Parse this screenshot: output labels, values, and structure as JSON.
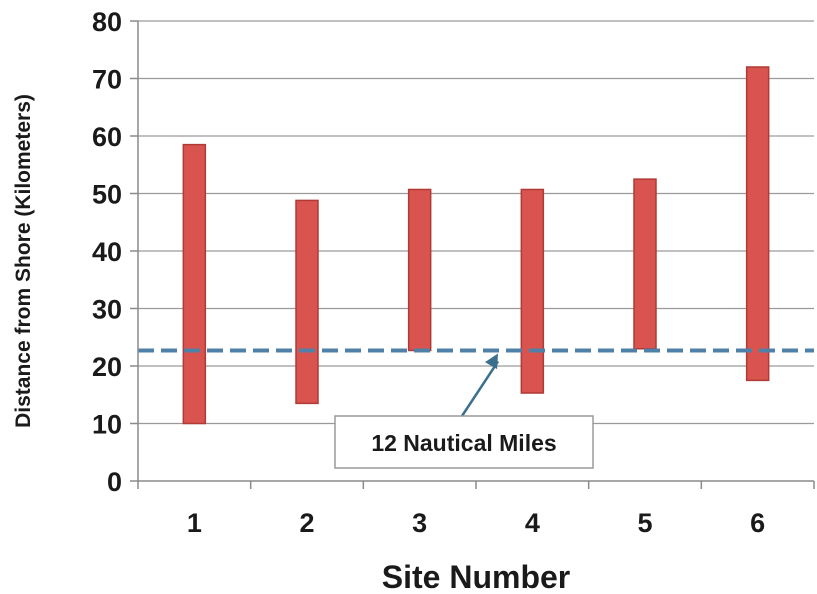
{
  "chart_data": {
    "type": "floating-bar",
    "title": "",
    "xlabel": "Site Number",
    "ylabel": "Distance from Shore (Kilometers)",
    "ylim": [
      0,
      80
    ],
    "yticks": [
      "0",
      "10",
      "20",
      "30",
      "40",
      "50",
      "60",
      "70",
      "80"
    ],
    "categories": [
      "1",
      "2",
      "3",
      "4",
      "5",
      "6"
    ],
    "ranges": [
      {
        "site": "1",
        "low": 10,
        "high": 58.5
      },
      {
        "site": "2",
        "low": 13.5,
        "high": 48.8
      },
      {
        "site": "3",
        "low": 22.7,
        "high": 50.7
      },
      {
        "site": "4",
        "low": 15.3,
        "high": 50.7
      },
      {
        "site": "5",
        "low": 23,
        "high": 52.5
      },
      {
        "site": "6",
        "low": 17.5,
        "high": 72
      }
    ],
    "reference_line": {
      "value": 22.7,
      "style": "dashed",
      "color": "#4f81a8"
    },
    "annotation": {
      "text": "12 Nautical Miles",
      "points_to_value": 22.7
    },
    "grid": true,
    "colors": {
      "bar_fill": "#d9534f",
      "bar_edge": "#b03a36",
      "grid": "#9a9a9a",
      "axis": "#8a8a8a",
      "reference": "#4f81a8"
    }
  }
}
